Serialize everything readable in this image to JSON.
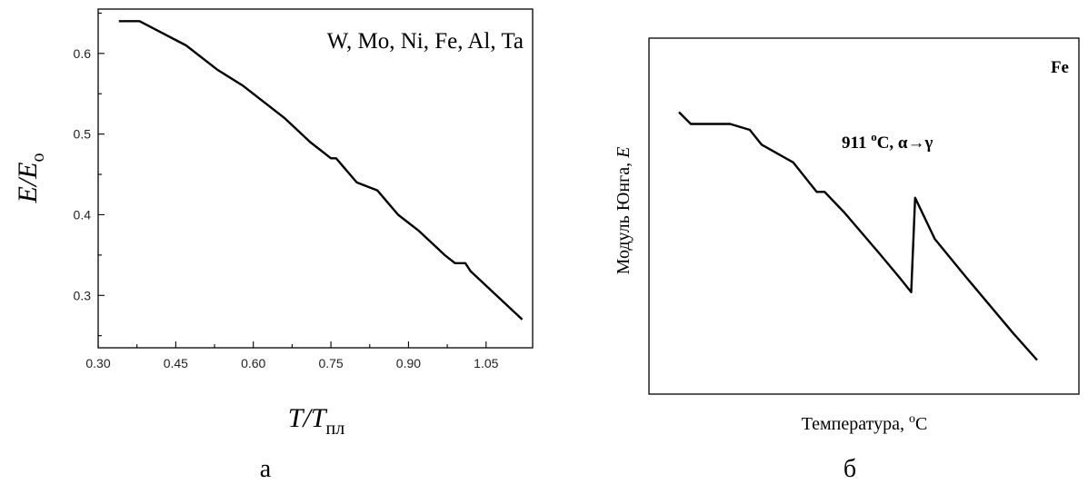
{
  "chart_data": [
    {
      "type": "line",
      "panel_label": "а",
      "annotation": "W, Mo, Ni, Fe, Al, Ta",
      "xlabel": {
        "main": "T/T",
        "subscript": "пл"
      },
      "ylabel": {
        "main": "E/E",
        "subscript": "о"
      },
      "xlim": [
        0.3,
        1.14
      ],
      "ylim": [
        0.235,
        0.655
      ],
      "xticks": [
        "0.30",
        "0.45",
        "0.60",
        "0.75",
        "0.90",
        "1.05"
      ],
      "yticks": [
        "0.3",
        "0.4",
        "0.5",
        "0.6"
      ],
      "x": [
        0.34,
        0.38,
        0.47,
        0.53,
        0.58,
        0.66,
        0.71,
        0.75,
        0.76,
        0.8,
        0.84,
        0.88,
        0.92,
        0.97,
        0.99,
        1.01,
        1.02,
        1.12
      ],
      "y": [
        0.64,
        0.64,
        0.61,
        0.58,
        0.56,
        0.52,
        0.49,
        0.47,
        0.47,
        0.44,
        0.43,
        0.4,
        0.38,
        0.35,
        0.34,
        0.34,
        0.33,
        0.27
      ]
    },
    {
      "type": "line",
      "panel_label": "б",
      "annotation": "Fe",
      "peak_annotation": {
        "value": "911 ",
        "sup": "o",
        "unit": "C, α→γ"
      },
      "xlabel": {
        "main": "Температура, ",
        "sup": "o",
        "unit": "C"
      },
      "ylabel": {
        "main": "Модуль Юнга, ",
        "italic": "E"
      },
      "ticks": false,
      "x": [
        0.0,
        0.03,
        0.13,
        0.18,
        0.21,
        0.29,
        0.35,
        0.37,
        0.42,
        0.51,
        0.56,
        0.59,
        0.6,
        0.65,
        0.73,
        0.85,
        0.91
      ],
      "y": [
        0.86,
        0.82,
        0.82,
        0.8,
        0.75,
        0.69,
        0.59,
        0.59,
        0.52,
        0.38,
        0.3,
        0.25,
        0.57,
        0.43,
        0.3,
        0.11,
        0.02
      ]
    }
  ]
}
